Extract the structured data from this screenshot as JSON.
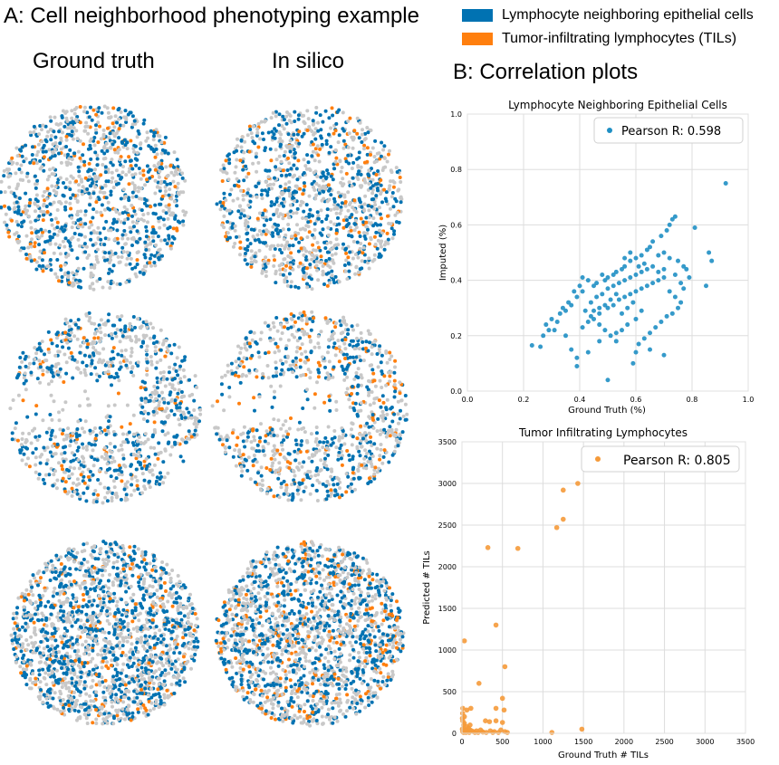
{
  "panel_a": {
    "title": "A: Cell neighborhood phenotyping example",
    "col_left": "Ground truth",
    "col_right": "In silico"
  },
  "panel_b": {
    "title": "B: Correlation plots"
  },
  "legend": [
    {
      "label": "Lymphocyte neighboring epithelial cells",
      "color": "#0072b2"
    },
    {
      "label": "Tumor-infiltrating lymphocytes (TILs)",
      "color": "#ff7f0e"
    }
  ],
  "colors": {
    "background_cells": "#c8c8c8",
    "grid": "#dddddd",
    "scatter1": "#1f8fc4",
    "scatter2": "#f59a3a"
  },
  "chart_data": [
    {
      "type": "scatter",
      "title": "Lymphocyte Neighboring Epithelial Cells",
      "xlabel": "Ground Truth (%)",
      "ylabel": "Imputed (%)",
      "xlim": [
        0,
        1
      ],
      "ylim": [
        0,
        1
      ],
      "xticks": [
        "0.0",
        "0.2",
        "0.4",
        "0.6",
        "0.8",
        "1.0"
      ],
      "yticks": [
        "0.0",
        "0.2",
        "0.4",
        "0.6",
        "0.8",
        "1.0"
      ],
      "xtick_values": [
        0,
        0.2,
        0.4,
        0.6,
        0.8,
        1.0
      ],
      "ytick_values": [
        0,
        0.2,
        0.4,
        0.6,
        0.8,
        1.0
      ],
      "legend": "Pearson R: 0.598",
      "legend_position": "upper-right",
      "grid": true,
      "points": [
        [
          0.92,
          0.75
        ],
        [
          0.86,
          0.5
        ],
        [
          0.87,
          0.47
        ],
        [
          0.85,
          0.38
        ],
        [
          0.81,
          0.59
        ],
        [
          0.74,
          0.63
        ],
        [
          0.73,
          0.62
        ],
        [
          0.72,
          0.6
        ],
        [
          0.71,
          0.58
        ],
        [
          0.69,
          0.56
        ],
        [
          0.66,
          0.54
        ],
        [
          0.65,
          0.52
        ],
        [
          0.7,
          0.5
        ],
        [
          0.68,
          0.49
        ],
        [
          0.72,
          0.48
        ],
        [
          0.75,
          0.47
        ],
        [
          0.77,
          0.45
        ],
        [
          0.78,
          0.44
        ],
        [
          0.64,
          0.51
        ],
        [
          0.62,
          0.49
        ],
        [
          0.6,
          0.48
        ],
        [
          0.58,
          0.47
        ],
        [
          0.63,
          0.46
        ],
        [
          0.61,
          0.45
        ],
        [
          0.56,
          0.45
        ],
        [
          0.55,
          0.44
        ],
        [
          0.53,
          0.43
        ],
        [
          0.52,
          0.42
        ],
        [
          0.5,
          0.41
        ],
        [
          0.49,
          0.4
        ],
        [
          0.48,
          0.42
        ],
        [
          0.46,
          0.39
        ],
        [
          0.45,
          0.38
        ],
        [
          0.43,
          0.4
        ],
        [
          0.41,
          0.41
        ],
        [
          0.4,
          0.38
        ],
        [
          0.38,
          0.36
        ],
        [
          0.36,
          0.32
        ],
        [
          0.34,
          0.3
        ],
        [
          0.33,
          0.28
        ],
        [
          0.3,
          0.26
        ],
        [
          0.28,
          0.24
        ],
        [
          0.26,
          0.16
        ],
        [
          0.23,
          0.165
        ],
        [
          0.31,
          0.22
        ],
        [
          0.35,
          0.2
        ],
        [
          0.37,
          0.15
        ],
        [
          0.39,
          0.12
        ],
        [
          0.39,
          0.09
        ],
        [
          0.41,
          0.23
        ],
        [
          0.43,
          0.25
        ],
        [
          0.44,
          0.27
        ],
        [
          0.47,
          0.28
        ],
        [
          0.5,
          0.3
        ],
        [
          0.52,
          0.31
        ],
        [
          0.54,
          0.33
        ],
        [
          0.56,
          0.34
        ],
        [
          0.58,
          0.35
        ],
        [
          0.6,
          0.36
        ],
        [
          0.62,
          0.37
        ],
        [
          0.64,
          0.38
        ],
        [
          0.66,
          0.39
        ],
        [
          0.68,
          0.4
        ],
        [
          0.7,
          0.41
        ],
        [
          0.72,
          0.36
        ],
        [
          0.74,
          0.34
        ],
        [
          0.76,
          0.32
        ],
        [
          0.75,
          0.3
        ],
        [
          0.73,
          0.28
        ],
        [
          0.71,
          0.27
        ],
        [
          0.69,
          0.25
        ],
        [
          0.67,
          0.23
        ],
        [
          0.65,
          0.21
        ],
        [
          0.63,
          0.19
        ],
        [
          0.61,
          0.17
        ],
        [
          0.6,
          0.14
        ],
        [
          0.65,
          0.15
        ],
        [
          0.7,
          0.13
        ],
        [
          0.59,
          0.1
        ],
        [
          0.5,
          0.04
        ],
        [
          0.53,
          0.18
        ],
        [
          0.51,
          0.2
        ],
        [
          0.49,
          0.22
        ],
        [
          0.47,
          0.24
        ],
        [
          0.45,
          0.26
        ],
        [
          0.42,
          0.29
        ],
        [
          0.44,
          0.32
        ],
        [
          0.46,
          0.34
        ],
        [
          0.48,
          0.35
        ],
        [
          0.5,
          0.37
        ],
        [
          0.52,
          0.38
        ],
        [
          0.54,
          0.39
        ],
        [
          0.56,
          0.4
        ],
        [
          0.58,
          0.41
        ],
        [
          0.6,
          0.42
        ],
        [
          0.62,
          0.43
        ],
        [
          0.64,
          0.44
        ],
        [
          0.66,
          0.45
        ],
        [
          0.68,
          0.43
        ],
        [
          0.7,
          0.44
        ],
        [
          0.74,
          0.42
        ],
        [
          0.76,
          0.39
        ],
        [
          0.79,
          0.41
        ],
        [
          0.77,
          0.37
        ],
        [
          0.55,
          0.28
        ],
        [
          0.57,
          0.3
        ],
        [
          0.59,
          0.32
        ],
        [
          0.53,
          0.35
        ],
        [
          0.51,
          0.33
        ],
        [
          0.49,
          0.31
        ],
        [
          0.47,
          0.3
        ],
        [
          0.45,
          0.29
        ],
        [
          0.41,
          0.36
        ],
        [
          0.39,
          0.34
        ],
        [
          0.37,
          0.31
        ],
        [
          0.35,
          0.29
        ],
        [
          0.32,
          0.25
        ],
        [
          0.29,
          0.22
        ],
        [
          0.27,
          0.2
        ],
        [
          0.6,
          0.26
        ],
        [
          0.62,
          0.29
        ],
        [
          0.57,
          0.24
        ],
        [
          0.55,
          0.22
        ],
        [
          0.53,
          0.21
        ],
        [
          0.43,
          0.14
        ],
        [
          0.47,
          0.18
        ],
        [
          0.56,
          0.48
        ],
        [
          0.58,
          0.5
        ]
      ]
    },
    {
      "type": "scatter",
      "title": "Tumor Infiltrating Lymphocytes",
      "xlabel": "Ground Truth # TILs",
      "ylabel": "Predicted # TILs",
      "xlim": [
        0,
        3500
      ],
      "ylim": [
        0,
        3500
      ],
      "xticks": [
        "0",
        "500",
        "1000",
        "1500",
        "2000",
        "2500",
        "3000",
        "3500"
      ],
      "yticks": [
        "0",
        "500",
        "1000",
        "1500",
        "2000",
        "2500",
        "3000",
        "3500"
      ],
      "xtick_values": [
        0,
        500,
        1000,
        1500,
        2000,
        2500,
        3000,
        3500
      ],
      "ytick_values": [
        0,
        500,
        1000,
        1500,
        2000,
        2500,
        3000,
        3500
      ],
      "legend": "Pearson R: 0.805",
      "legend_position": "upper-right",
      "grid": true,
      "points": [
        [
          1430,
          3000
        ],
        [
          1250,
          2920
        ],
        [
          1250,
          2570
        ],
        [
          1170,
          2470
        ],
        [
          320,
          2230
        ],
        [
          690,
          2220
        ],
        [
          420,
          1300
        ],
        [
          30,
          1110
        ],
        [
          530,
          800
        ],
        [
          210,
          600
        ],
        [
          500,
          420
        ],
        [
          420,
          300
        ],
        [
          520,
          280
        ],
        [
          290,
          150
        ],
        [
          340,
          140
        ],
        [
          420,
          150
        ],
        [
          500,
          130
        ],
        [
          110,
          300
        ],
        [
          60,
          280
        ],
        [
          10,
          300
        ],
        [
          30,
          200
        ],
        [
          10,
          150
        ],
        [
          20,
          100
        ],
        [
          60,
          80
        ],
        [
          80,
          60
        ],
        [
          100,
          40
        ],
        [
          120,
          30
        ],
        [
          140,
          20
        ],
        [
          160,
          10
        ],
        [
          200,
          10
        ],
        [
          250,
          20
        ],
        [
          300,
          10
        ],
        [
          400,
          20
        ],
        [
          450,
          10
        ],
        [
          530,
          20
        ],
        [
          560,
          10
        ],
        [
          1110,
          10
        ],
        [
          1480,
          50
        ],
        [
          10,
          20
        ],
        [
          20,
          10
        ],
        [
          40,
          30
        ],
        [
          5,
          50
        ],
        [
          15,
          60
        ],
        [
          50,
          10
        ],
        [
          70,
          20
        ],
        [
          90,
          10
        ],
        [
          180,
          30
        ],
        [
          230,
          40
        ],
        [
          260,
          15
        ],
        [
          350,
          30
        ],
        [
          380,
          10
        ],
        [
          480,
          40
        ],
        [
          30,
          120
        ],
        [
          5,
          180
        ],
        [
          45,
          40
        ],
        [
          8,
          240
        ],
        [
          100,
          100
        ]
      ]
    }
  ]
}
